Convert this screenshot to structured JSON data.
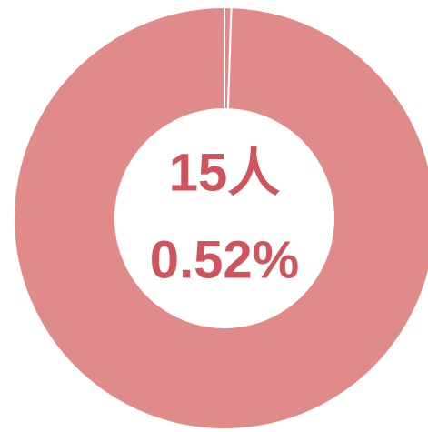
{
  "chart_data": {
    "type": "donut",
    "values": [
      0.52,
      99.48
    ],
    "value_labels": [
      "0.52%",
      null
    ],
    "center_text": "15人",
    "colors": [
      "#e08a8a",
      "#e08a8a"
    ],
    "text_color": "#d0545c"
  }
}
